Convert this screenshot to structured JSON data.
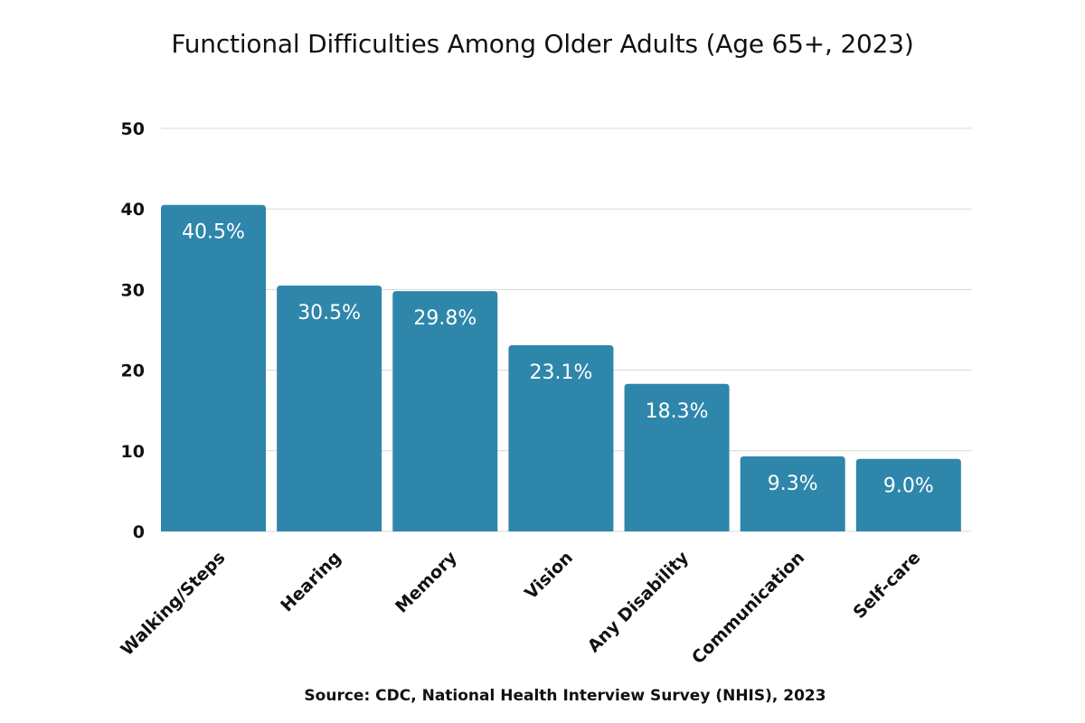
{
  "chart_data": {
    "type": "bar",
    "title": "Functional Difficulties Among Older Adults (Age 65+, 2023)",
    "source": "Source: CDC, National Health Interview Survey (NHIS), 2023",
    "categories": [
      "Walking/Steps",
      "Hearing",
      "Memory",
      "Vision",
      "Any Disability",
      "Communication",
      "Self-care"
    ],
    "values": [
      40.5,
      30.5,
      29.8,
      23.1,
      18.3,
      9.3,
      9.0
    ],
    "data_labels": [
      "40.5%",
      "30.5%",
      "29.8%",
      "23.1%",
      "18.3%",
      "9.3%",
      "9.0%"
    ],
    "xlabel": "",
    "ylabel": "",
    "ylim": [
      0,
      50
    ],
    "yticks": [
      "0",
      "10",
      "20",
      "30",
      "40",
      "50"
    ],
    "grid": true,
    "legend": "none",
    "colors": {
      "bar": "#2e86ab",
      "grid": "#d9d9d9",
      "text": "#111111",
      "bar_label": "#ffffff"
    }
  }
}
